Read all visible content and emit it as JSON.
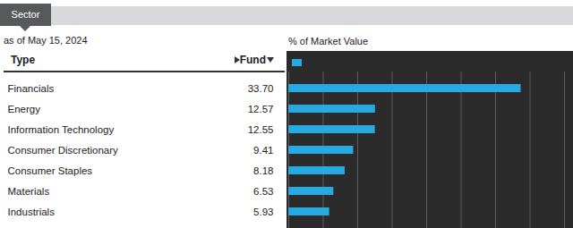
{
  "page": {
    "tab": "Sector",
    "as_of": "as of May 15, 2024"
  },
  "chart_data": {
    "type": "bar",
    "orientation": "horizontal",
    "ylabel": "Type",
    "xlabel": "% of Market Value",
    "categories": [
      "Financials",
      "Energy",
      "Information Technology",
      "Consumer Discretionary",
      "Consumer Staples",
      "Materials",
      "Industrials"
    ],
    "series": [
      {
        "name": "Fund",
        "color": "#27aae1",
        "values": [
          33.7,
          12.57,
          12.55,
          9.41,
          8.18,
          6.53,
          5.93
        ],
        "value_labels": [
          "33.70",
          "12.57",
          "12.55",
          "9.41",
          "8.18",
          "6.53",
          "5.93"
        ]
      }
    ],
    "xlim": [
      0,
      40
    ],
    "xticks": [
      0,
      5,
      10,
      15,
      20,
      25,
      30,
      35,
      40
    ],
    "grid": true,
    "data_labels": true,
    "tick_labels": false
  }
}
